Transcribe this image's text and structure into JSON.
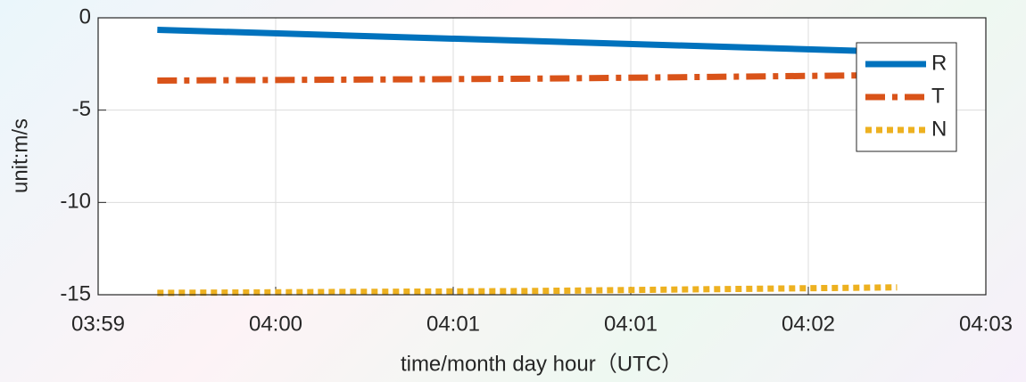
{
  "chart_data": {
    "type": "line",
    "xlabel": "time/month day hour（UTC）",
    "ylabel": "unit:m/s",
    "x": [
      16,
      66,
      116,
      166,
      216
    ],
    "series": [
      {
        "name": "R",
        "color": "#0072bd",
        "style": "solid",
        "values": [
          -0.65,
          -0.95,
          -1.25,
          -1.55,
          -1.85
        ]
      },
      {
        "name": "T",
        "color": "#d95319",
        "style": "dashdot",
        "values": [
          -3.4,
          -3.35,
          -3.3,
          -3.2,
          -3.1
        ]
      },
      {
        "name": "N",
        "color": "#edb120",
        "style": "dotted",
        "values": [
          -14.9,
          -14.85,
          -14.8,
          -14.7,
          -14.6
        ]
      }
    ],
    "xlim": [
      0,
      240
    ],
    "xticks": [
      {
        "value": 0,
        "label": "03:59"
      },
      {
        "value": 48,
        "label": "04:00"
      },
      {
        "value": 96,
        "label": "04:01"
      },
      {
        "value": 144,
        "label": "04:01"
      },
      {
        "value": 192,
        "label": "04:02"
      },
      {
        "value": 240,
        "label": "04:03"
      }
    ],
    "ylim": [
      -15,
      0
    ],
    "yticks": [
      -15,
      -10,
      -5,
      0
    ],
    "grid": true,
    "legend": "northeast"
  }
}
